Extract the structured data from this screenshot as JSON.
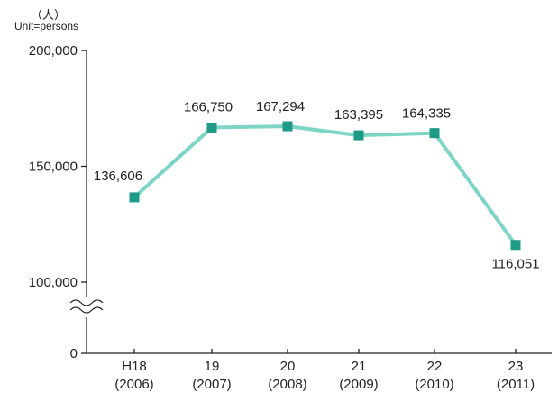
{
  "unit": {
    "symbol": "（人）",
    "label": "Unit=persons"
  },
  "chart_data": {
    "type": "line",
    "categories": [
      [
        "H18",
        "(2006)"
      ],
      [
        "19",
        "(2007)"
      ],
      [
        "20",
        "(2008)"
      ],
      [
        "21",
        "(2009)"
      ],
      [
        "22",
        "(2010)"
      ],
      [
        "23",
        "(2011)"
      ]
    ],
    "values": [
      136606,
      166750,
      167294,
      163395,
      164335,
      116051
    ],
    "data_labels": [
      "136,606",
      "166,750",
      "167,294",
      "163,395",
      "164,335",
      "116,051"
    ],
    "y_ticks": [
      {
        "value": 200000,
        "label": "200,000"
      },
      {
        "value": 150000,
        "label": "150,000"
      },
      {
        "value": 100000,
        "label": "100,000"
      },
      {
        "value": 0,
        "label": "0"
      }
    ],
    "ylim": [
      100000,
      200000
    ],
    "y_axis_break": true,
    "line_color": "#7fd4c8",
    "marker_color": "#1e9a86",
    "grid": false,
    "legend": "none"
  }
}
